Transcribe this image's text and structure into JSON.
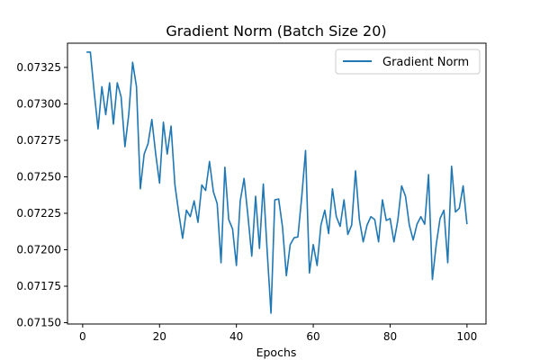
{
  "chart_data": {
    "type": "line",
    "title": "Gradient Norm (Batch Size 20)",
    "xlabel": "Epochs",
    "ylabel": "",
    "xlim": [
      -3.95,
      104.95
    ],
    "ylim": [
      0.071491,
      0.073416
    ],
    "xticks": [
      0,
      20,
      40,
      60,
      80,
      100
    ],
    "xtick_labels": [
      "0",
      "20",
      "40",
      "60",
      "80",
      "100"
    ],
    "yticks": [
      0.0715,
      0.07175,
      0.072,
      0.07225,
      0.0725,
      0.07275,
      0.073,
      0.07325
    ],
    "ytick_labels": [
      "0.07150",
      "0.07175",
      "0.07200",
      "0.07225",
      "0.07250",
      "0.07275",
      "0.07300",
      "0.07325"
    ],
    "grid": false,
    "legend_position": "upper right",
    "series": [
      {
        "name": "Gradient Norm",
        "color": "#1f77b4",
        "x": [
          1,
          2,
          3,
          4,
          5,
          6,
          7,
          8,
          9,
          10,
          11,
          12,
          13,
          14,
          15,
          16,
          17,
          18,
          19,
          20,
          21,
          22,
          23,
          24,
          25,
          26,
          27,
          28,
          29,
          30,
          31,
          32,
          33,
          34,
          35,
          36,
          37,
          38,
          39,
          40,
          41,
          42,
          43,
          44,
          45,
          46,
          47,
          48,
          49,
          50,
          51,
          52,
          53,
          54,
          55,
          56,
          57,
          58,
          59,
          60,
          61,
          62,
          63,
          64,
          65,
          66,
          67,
          68,
          69,
          70,
          71,
          72,
          73,
          74,
          75,
          76,
          77,
          78,
          79,
          80,
          81,
          82,
          83,
          84,
          85,
          86,
          87,
          88,
          89,
          90,
          91,
          92,
          93,
          94,
          95,
          96,
          97,
          98,
          99,
          100
        ],
        "y": [
          0.073355,
          0.073355,
          0.07308,
          0.072829,
          0.073118,
          0.072926,
          0.073144,
          0.072861,
          0.073144,
          0.073048,
          0.072706,
          0.072931,
          0.073285,
          0.073118,
          0.072418,
          0.072656,
          0.072726,
          0.072893,
          0.072656,
          0.072457,
          0.072874,
          0.072656,
          0.072848,
          0.072444,
          0.072252,
          0.072079,
          0.072271,
          0.072227,
          0.072335,
          0.072188,
          0.072444,
          0.072406,
          0.072605,
          0.072399,
          0.072316,
          0.071911,
          0.072566,
          0.072207,
          0.072143,
          0.071892,
          0.072335,
          0.072489,
          0.072233,
          0.071956,
          0.072367,
          0.072009,
          0.072451,
          0.071994,
          0.071565,
          0.072342,
          0.072348,
          0.072156,
          0.071822,
          0.072035,
          0.072082,
          0.072088,
          0.072361,
          0.07268,
          0.071841,
          0.072035,
          0.071892,
          0.072169,
          0.072271,
          0.072111,
          0.072418,
          0.072227,
          0.07216,
          0.072342,
          0.072105,
          0.072169,
          0.072541,
          0.072207,
          0.072054,
          0.072169,
          0.072227,
          0.072207,
          0.072054,
          0.072342,
          0.072201,
          0.072214,
          0.072054,
          0.072201,
          0.072438,
          0.072367,
          0.072169,
          0.072067,
          0.072175,
          0.072227,
          0.072175,
          0.072515,
          0.071796,
          0.072035,
          0.072214,
          0.072271,
          0.071911,
          0.072573,
          0.072259,
          0.072284,
          0.072438,
          0.072175
        ]
      }
    ]
  }
}
